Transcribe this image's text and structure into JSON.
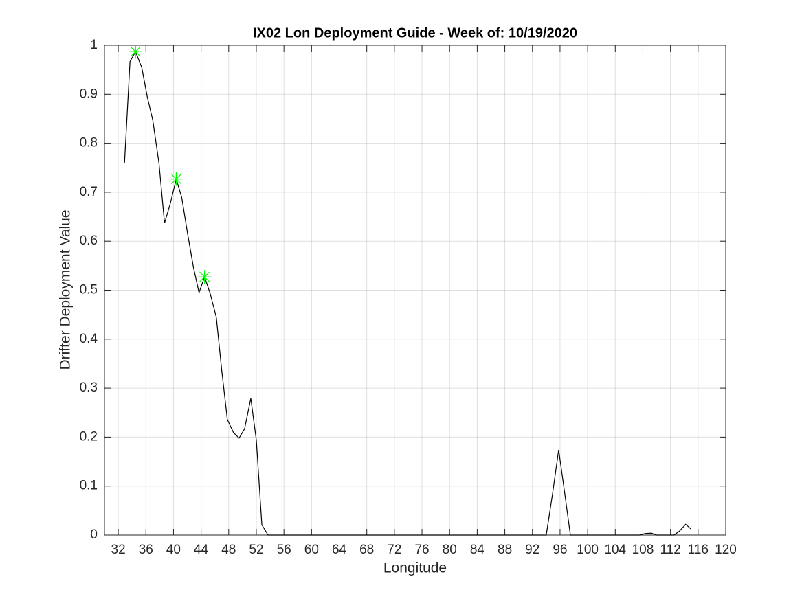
{
  "chart_data": {
    "type": "line",
    "title": "IX02 Lon Deployment Guide - Week of: 10/19/2020",
    "x_label": "Longitude",
    "y_label": "Drifter Deployment Value",
    "series": [
      {
        "color": "#000000",
        "marker": "none",
        "x": [
          32.9,
          33.7,
          34.5,
          35.4,
          36.2,
          37.0,
          37.9,
          38.7,
          39.5,
          40.4,
          41.2,
          42.0,
          42.9,
          43.7,
          44.5,
          45.3,
          46.2,
          47.0,
          47.8,
          48.7,
          49.5,
          50.3,
          51.2,
          52.0,
          52.8,
          53.7,
          94.0,
          94.9,
          95.8,
          96.7,
          97.5,
          107.5,
          108.3,
          109.2,
          110.0,
          112.5,
          113.3,
          114.2,
          115.0
        ],
        "values": [
          0.759,
          0.967,
          0.987,
          0.955,
          0.895,
          0.847,
          0.759,
          0.637,
          0.675,
          0.727,
          0.689,
          0.619,
          0.546,
          0.495,
          0.527,
          0.494,
          0.445,
          0.335,
          0.236,
          0.209,
          0.198,
          0.217,
          0.279,
          0.194,
          0.021,
          0,
          0,
          0.083,
          0.174,
          0.083,
          0,
          0,
          0.003,
          0.004,
          0,
          0,
          0.008,
          0.022,
          0.012
        ]
      },
      {
        "color": "#00ff00",
        "marker": "*",
        "x": [
          34.5,
          40.4,
          44.5
        ],
        "values": [
          0.987,
          0.727,
          0.527
        ]
      }
    ],
    "xlim": [
      30,
      120
    ],
    "xticks": [
      32,
      36,
      40,
      44,
      48,
      52,
      56,
      60,
      64,
      68,
      72,
      76,
      80,
      84,
      88,
      92,
      96,
      100,
      104,
      108,
      112,
      116,
      120
    ],
    "ylim": [
      0,
      1
    ],
    "yticks": [
      0,
      0.1,
      0.2,
      0.3,
      0.4,
      0.5,
      0.6,
      0.7,
      0.8,
      0.9,
      1
    ],
    "grid": true
  }
}
